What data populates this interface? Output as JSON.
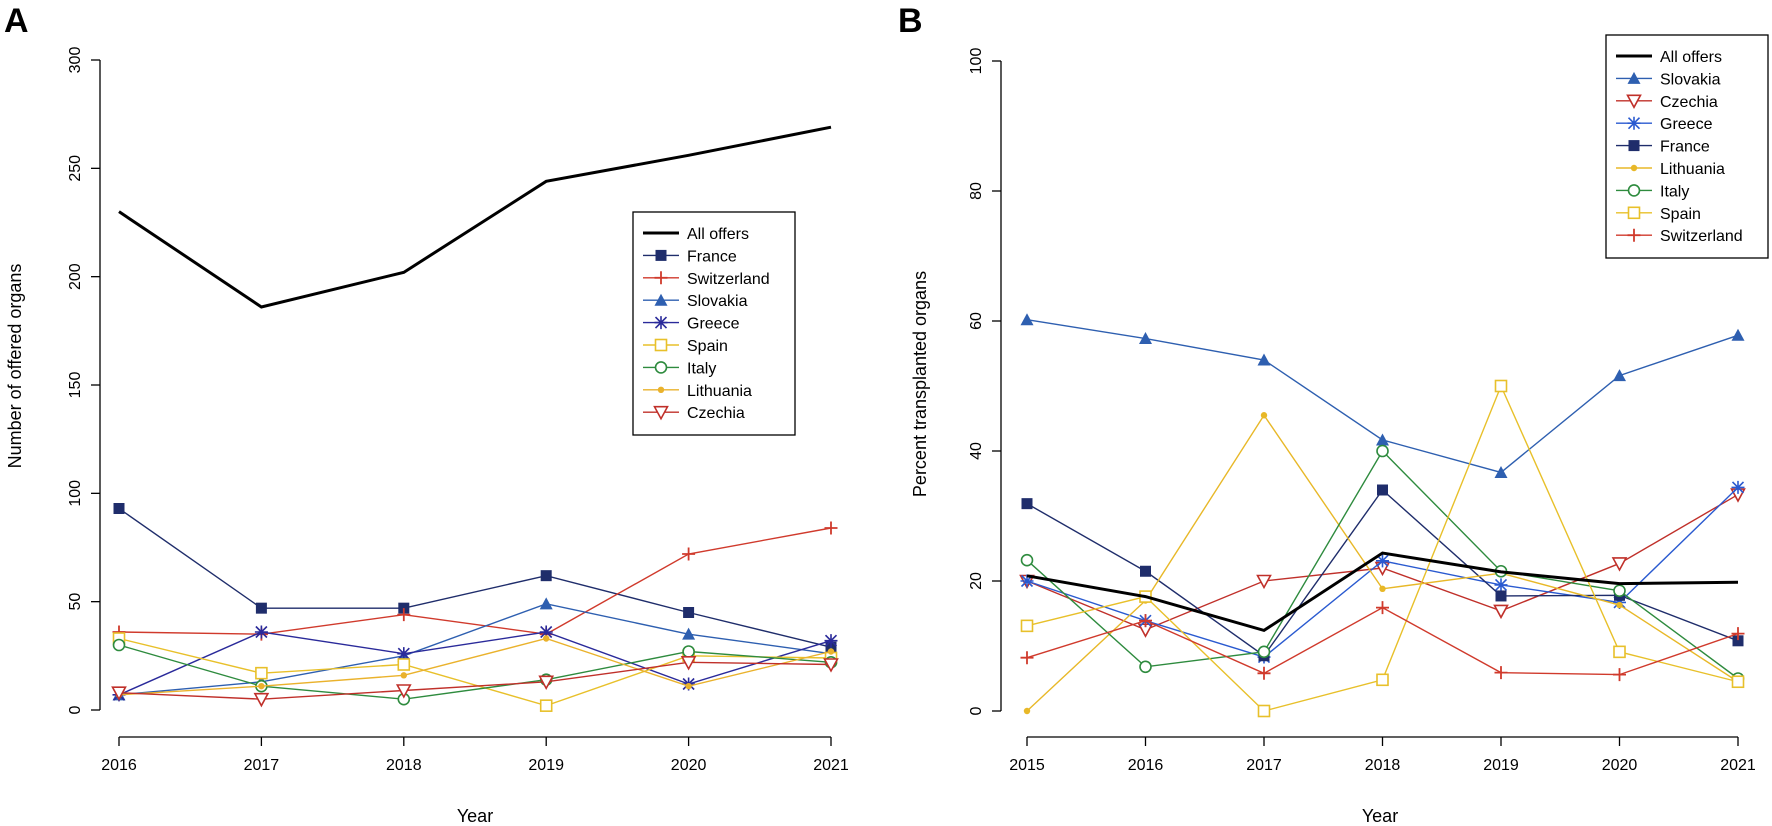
{
  "chart_data": [
    {
      "panel_label": "A",
      "type": "line",
      "title": "",
      "xlabel": "Year",
      "ylabel": "Number of offered organs",
      "x": [
        2016,
        2017,
        2018,
        2019,
        2020,
        2021
      ],
      "xticks": [
        "2016",
        "2017",
        "2018",
        "2019",
        "2020",
        "2021"
      ],
      "ylim": [
        0,
        300
      ],
      "yticks": [
        "0",
        "50",
        "100",
        "150",
        "200",
        "250",
        "300"
      ],
      "ytick_values": [
        0,
        50,
        100,
        150,
        200,
        250,
        300
      ],
      "grid": false,
      "legend_position": "center-right",
      "series": [
        {
          "name": "All offers",
          "color": "#000000",
          "marker": "none",
          "bold": true,
          "values": [
            230,
            186,
            202,
            244,
            256,
            269
          ]
        },
        {
          "name": "France",
          "color": "#1f2d6b",
          "marker": "square",
          "values": [
            93,
            47,
            47,
            62,
            45,
            29
          ]
        },
        {
          "name": "Switzerland",
          "color": "#d03a2c",
          "marker": "plus",
          "values": [
            36,
            35,
            44,
            35,
            72,
            84
          ]
        },
        {
          "name": "Slovakia",
          "color": "#2e5fb0",
          "marker": "triangle",
          "values": [
            7,
            13,
            25,
            49,
            35,
            26
          ]
        },
        {
          "name": "Greece",
          "color": "#2a2a9a",
          "marker": "star",
          "values": [
            7,
            36,
            26,
            36,
            12,
            32
          ]
        },
        {
          "name": "Spain",
          "color": "#e8c02a",
          "marker": "square-open",
          "values": [
            33,
            17,
            21,
            2,
            25,
            24
          ]
        },
        {
          "name": "Italy",
          "color": "#2e8b3e",
          "marker": "circle-open",
          "values": [
            30,
            11,
            5,
            14,
            27,
            22
          ]
        },
        {
          "name": "Lithuania",
          "color": "#eab22c",
          "marker": "dot",
          "values": [
            7,
            11,
            16,
            33,
            11,
            27
          ]
        },
        {
          "name": "Czechia",
          "color": "#c0302a",
          "marker": "triangle-down-open",
          "values": [
            8,
            5,
            9,
            13,
            22,
            21
          ]
        }
      ]
    },
    {
      "panel_label": "B",
      "type": "line",
      "title": "",
      "xlabel": "Year",
      "ylabel": "Percent transplanted organs",
      "x": [
        2015,
        2016,
        2017,
        2018,
        2019,
        2020,
        2021
      ],
      "xticks": [
        "2015",
        "2016",
        "2017",
        "2018",
        "2019",
        "2020",
        "2021"
      ],
      "ylim": [
        0,
        100
      ],
      "yticks": [
        "0",
        "20",
        "40",
        "60",
        "80",
        "100"
      ],
      "ytick_values": [
        0,
        20,
        40,
        60,
        80,
        100
      ],
      "grid": false,
      "legend_position": "top-right",
      "series": [
        {
          "name": "All offers",
          "color": "#000000",
          "marker": "none",
          "bold": true,
          "values": [
            20.8,
            17.6,
            12.4,
            24.3,
            21.4,
            19.6,
            19.8
          ]
        },
        {
          "name": "Slovakia",
          "color": "#2e5fb0",
          "marker": "triangle",
          "values": [
            60.2,
            57.3,
            54.0,
            41.7,
            36.7,
            51.6,
            57.8
          ]
        },
        {
          "name": "Czechia",
          "color": "#c0302a",
          "marker": "triangle-down-open",
          "values": [
            20.0,
            12.5,
            20.0,
            22.0,
            15.4,
            22.7,
            33.3
          ]
        },
        {
          "name": "Greece",
          "color": "#2a5ad0",
          "marker": "star",
          "values": [
            20.0,
            13.9,
            8.3,
            23.1,
            19.4,
            16.7,
            34.4
          ]
        },
        {
          "name": "France",
          "color": "#1f2d6b",
          "marker": "square",
          "values": [
            31.9,
            21.5,
            8.5,
            34.0,
            17.7,
            17.8,
            10.8
          ]
        },
        {
          "name": "Lithuania",
          "color": "#e8b828",
          "marker": "dot",
          "values": [
            0.0,
            17.0,
            45.5,
            18.8,
            21.2,
            16.3,
            4.5
          ]
        },
        {
          "name": "Italy",
          "color": "#2e8b3e",
          "marker": "circle-open",
          "values": [
            23.2,
            6.8,
            9.1,
            40.0,
            21.5,
            18.5,
            5.0
          ]
        },
        {
          "name": "Spain",
          "color": "#e8c02a",
          "marker": "square-open",
          "values": [
            13.1,
            17.6,
            0.0,
            4.8,
            50.0,
            9.1,
            4.5
          ]
        },
        {
          "name": "Switzerland",
          "color": "#d03a2c",
          "marker": "plus",
          "values": [
            8.2,
            13.9,
            5.8,
            15.9,
            5.9,
            5.6,
            11.9
          ]
        }
      ]
    }
  ]
}
